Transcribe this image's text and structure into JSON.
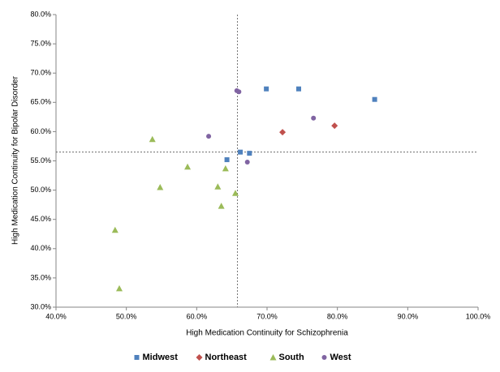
{
  "chart_data": {
    "type": "scatter",
    "x_label": "High Medication Continuity for Schizophrenia",
    "y_label": "High Medication Continuity for Bipolar Disorder",
    "xlim": [
      40,
      100
    ],
    "ylim": [
      30,
      80
    ],
    "xticks": [
      {
        "value": 40,
        "label": "40.0%"
      },
      {
        "value": 50,
        "label": "50.0%"
      },
      {
        "value": 60,
        "label": "60.0%"
      },
      {
        "value": 70,
        "label": "70.0%"
      },
      {
        "value": 80,
        "label": "80.0%"
      },
      {
        "value": 90,
        "label": "90.0%"
      },
      {
        "value": 100,
        "label": "100.0%"
      }
    ],
    "yticks": [
      {
        "value": 30,
        "label": "30.0%"
      },
      {
        "value": 35,
        "label": "35.0%"
      },
      {
        "value": 40,
        "label": "40.0%"
      },
      {
        "value": 45,
        "label": "45.0%"
      },
      {
        "value": 50,
        "label": "50.0%"
      },
      {
        "value": 55,
        "label": "55.0%"
      },
      {
        "value": 60,
        "label": "60.0%"
      },
      {
        "value": 65,
        "label": "65.0%"
      },
      {
        "value": 70,
        "label": "70.0%"
      },
      {
        "value": 75,
        "label": "75.0%"
      },
      {
        "value": 80,
        "label": "80.0%"
      }
    ],
    "vline": 65.8,
    "hline": 56.5,
    "legend": "bottom",
    "series": [
      {
        "name": "Midwest",
        "color": "#4f81bd",
        "marker": "square",
        "x": [
          69.9,
          74.5,
          85.3,
          64.3,
          66.2,
          67.5
        ],
        "values": [
          67.3,
          67.3,
          65.5,
          55.2,
          56.5,
          56.3
        ]
      },
      {
        "name": "Northeast",
        "color": "#c0504d",
        "marker": "diamond",
        "x": [
          72.2,
          79.6
        ],
        "values": [
          59.9,
          61.0
        ]
      },
      {
        "name": "South",
        "color": "#9bbb59",
        "marker": "triangle",
        "x": [
          53.7,
          58.7,
          54.8,
          64.1,
          63.0,
          63.5,
          65.5,
          48.4,
          49.0
        ],
        "values": [
          58.7,
          54.0,
          50.5,
          53.7,
          50.6,
          47.3,
          49.5,
          43.2,
          33.2
        ]
      },
      {
        "name": "West",
        "color": "#8064a2",
        "marker": "circle",
        "x": [
          65.7,
          66.0,
          61.7,
          76.6,
          67.2
        ],
        "values": [
          67.0,
          66.8,
          59.2,
          62.3,
          54.8
        ]
      }
    ]
  }
}
